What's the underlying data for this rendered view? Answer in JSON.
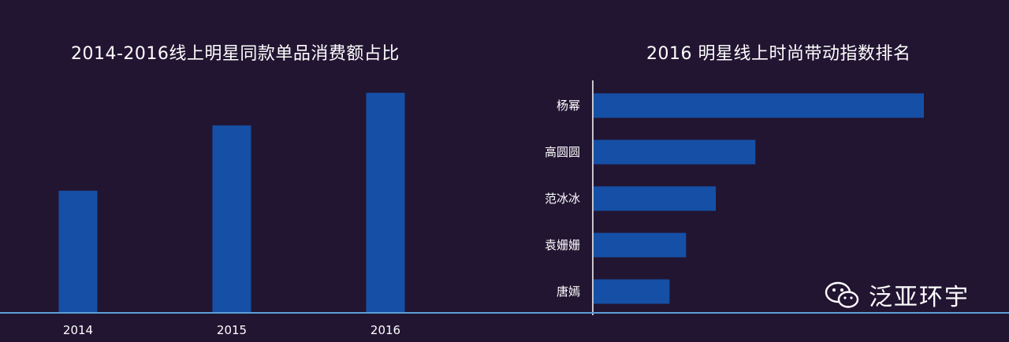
{
  "chart_data": [
    {
      "type": "bar",
      "title": "2014-2016线上明星同款单品消费额占比",
      "categories": [
        "2014",
        "2015",
        "2016"
      ],
      "values": [
        26,
        40,
        47
      ],
      "ylim": [
        0,
        50
      ],
      "grid": false,
      "legend": "none",
      "bar_color": "#1550a6"
    },
    {
      "type": "bar",
      "orientation": "horizontal",
      "title": "2016 明星线上时尚带动指数排名",
      "categories": [
        "杨幂",
        "高圆圆",
        "范冰冰",
        "袁姗姗",
        "唐嫣"
      ],
      "values": [
        100,
        49,
        37,
        28,
        23
      ],
      "xlim": [
        0,
        100
      ],
      "grid": false,
      "legend": "none",
      "bar_color": "#1550a6"
    }
  ],
  "watermark": {
    "icon": "wechat-icon",
    "text": "泛亚环宇"
  },
  "colors": {
    "background": "#221532",
    "bar": "#1550a6",
    "baseline": "#5aa0d8",
    "axis": "#ffffff"
  }
}
